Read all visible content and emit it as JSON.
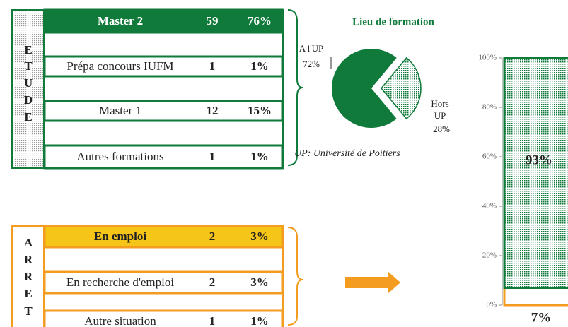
{
  "etude": {
    "letters": [
      "E",
      "T",
      "U",
      "D",
      "E"
    ],
    "rows": [
      [
        "Master 2",
        "59",
        "76%"
      ],
      [
        "Prépa concours IUFM",
        "1",
        "1%"
      ],
      [
        "Master 1",
        "12",
        "15%"
      ],
      [
        "Autres formations",
        "1",
        "1%"
      ]
    ]
  },
  "arret": {
    "letters": [
      "A",
      "R",
      "R",
      "E",
      "T"
    ],
    "rows": [
      [
        "En emploi",
        "2",
        "3%"
      ],
      [
        "En recherche d'emploi",
        "2",
        "3%"
      ],
      [
        "Autre situation",
        "1",
        "1%"
      ]
    ]
  },
  "note": "UP:  Université de Poitiers",
  "chart_data": [
    {
      "type": "pie",
      "title": "Lieu de formation",
      "categories": [
        "A l'UP",
        "Hors UP"
      ],
      "values": [
        72,
        28
      ],
      "value_labels": [
        "72%",
        "28%"
      ],
      "colors": [
        "#0f7a3a",
        "#ffffff"
      ]
    },
    {
      "type": "bar",
      "categories": [
        null
      ],
      "series": [
        {
          "color": "#f39c1f",
          "values": [
            7
          ],
          "value_labels": [
            "7%"
          ]
        },
        {
          "color": "#0f7a3a",
          "values": [
            93
          ],
          "value_labels": [
            "93%"
          ]
        }
      ],
      "ylim": [
        0,
        100
      ],
      "yticks": [
        {
          "value": 0,
          "label": "0%"
        },
        {
          "value": 20,
          "label": "20%"
        },
        {
          "value": 40,
          "label": "40%"
        },
        {
          "value": 60,
          "label": "60%"
        },
        {
          "value": 80,
          "label": "80%"
        },
        {
          "value": 100,
          "label": "100%"
        }
      ]
    }
  ]
}
